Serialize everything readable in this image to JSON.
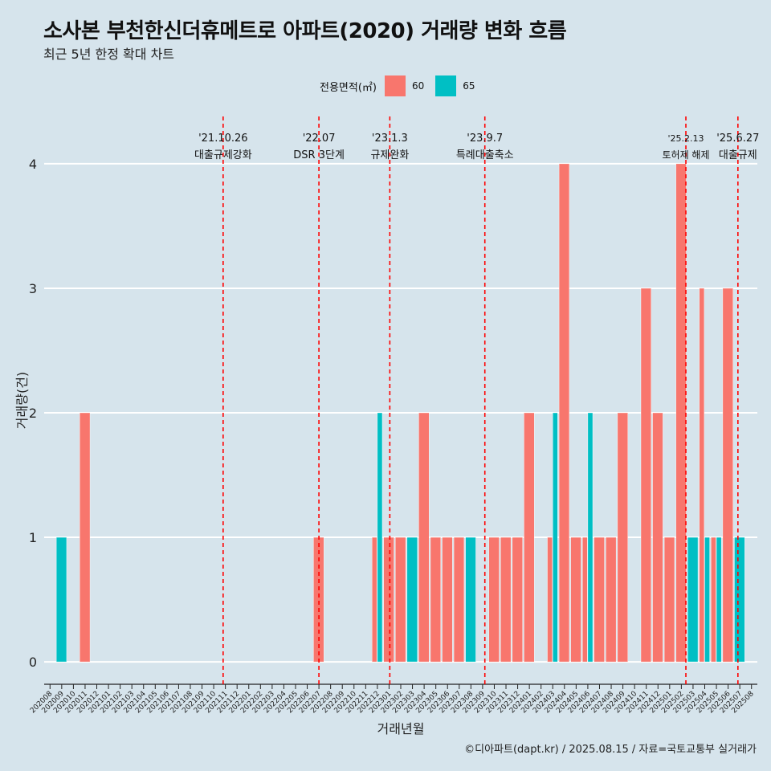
{
  "title": "소사본 부천한신더휴메트로 아파트(2020) 거래량 변화 흐름",
  "subtitle": "최근 5년 한정 확대 차트",
  "caption": "©디아파트(dapt.kr) / 2025.08.15 / 자료=국토교통부 실거래가",
  "legend": {
    "title": "전용면적(㎡)",
    "items": [
      {
        "label": "60",
        "color": "#f8766d"
      },
      {
        "label": "65",
        "color": "#00bfc4"
      }
    ]
  },
  "chart_data": {
    "type": "bar",
    "xlabel": "거래년월",
    "ylabel": "거래량(건)",
    "ylim": [
      -0.18,
      4.38
    ],
    "yticks": [
      0,
      1,
      2,
      3,
      4
    ],
    "categories": [
      "202008",
      "202009",
      "202010",
      "202011",
      "202012",
      "202101",
      "202102",
      "202103",
      "202104",
      "202105",
      "202106",
      "202107",
      "202108",
      "202109",
      "202110",
      "202111",
      "202112",
      "202201",
      "202202",
      "202203",
      "202204",
      "202205",
      "202206",
      "202207",
      "202208",
      "202209",
      "202210",
      "202211",
      "202212",
      "202301",
      "202302",
      "202303",
      "202304",
      "202305",
      "202306",
      "202307",
      "202308",
      "202309",
      "202310",
      "202311",
      "202312",
      "202401",
      "202402",
      "202403",
      "202404",
      "202405",
      "202406",
      "202407",
      "202408",
      "202409",
      "202410",
      "202411",
      "202412",
      "202501",
      "202502",
      "202503",
      "202504",
      "202505",
      "202506",
      "202507",
      "202508"
    ],
    "series": [
      {
        "name": "60",
        "color": "#f8766d",
        "values": [
          0,
          0,
          0,
          2,
          0,
          0,
          0,
          0,
          0,
          0,
          0,
          0,
          0,
          0,
          0,
          0,
          0,
          0,
          0,
          0,
          0,
          0,
          0,
          1,
          0,
          0,
          0,
          0,
          1,
          1,
          1,
          0,
          2,
          1,
          1,
          1,
          0,
          0,
          1,
          1,
          1,
          2,
          0,
          1,
          4,
          1,
          1,
          1,
          1,
          2,
          0,
          3,
          2,
          1,
          4,
          0,
          3,
          1,
          3,
          0,
          0
        ]
      },
      {
        "name": "65",
        "color": "#00bfc4",
        "values": [
          0,
          1,
          0,
          0,
          0,
          0,
          0,
          0,
          0,
          0,
          0,
          0,
          0,
          0,
          0,
          0,
          0,
          0,
          0,
          0,
          0,
          0,
          0,
          0,
          0,
          0,
          0,
          0,
          2,
          0,
          0,
          1,
          0,
          0,
          0,
          0,
          1,
          0,
          0,
          0,
          0,
          0,
          0,
          2,
          0,
          0,
          2,
          0,
          0,
          0,
          0,
          0,
          0,
          0,
          0,
          1,
          1,
          1,
          0,
          1,
          0
        ]
      }
    ],
    "events": [
      {
        "date": "2021-10-26",
        "label1": "'21.10.26",
        "label2": "대출규제강화"
      },
      {
        "date": "2022-07-01",
        "label1": "'22.07",
        "label2": "DSR 3단계"
      },
      {
        "date": "2023-01-03",
        "label1": "'23.1.3",
        "label2": "규제완화"
      },
      {
        "date": "2023-09-07",
        "label1": "'23.9.7",
        "label2": "특례대출축소"
      },
      {
        "date": "2025-02-13",
        "label1": "'25.2.13",
        "label2": "토허제 해제"
      },
      {
        "date": "2025-06-27",
        "label1": "'25.6.27",
        "label2": "대출규제"
      }
    ],
    "event_color": "#ff0000",
    "grid": true,
    "legend_position": "top"
  }
}
